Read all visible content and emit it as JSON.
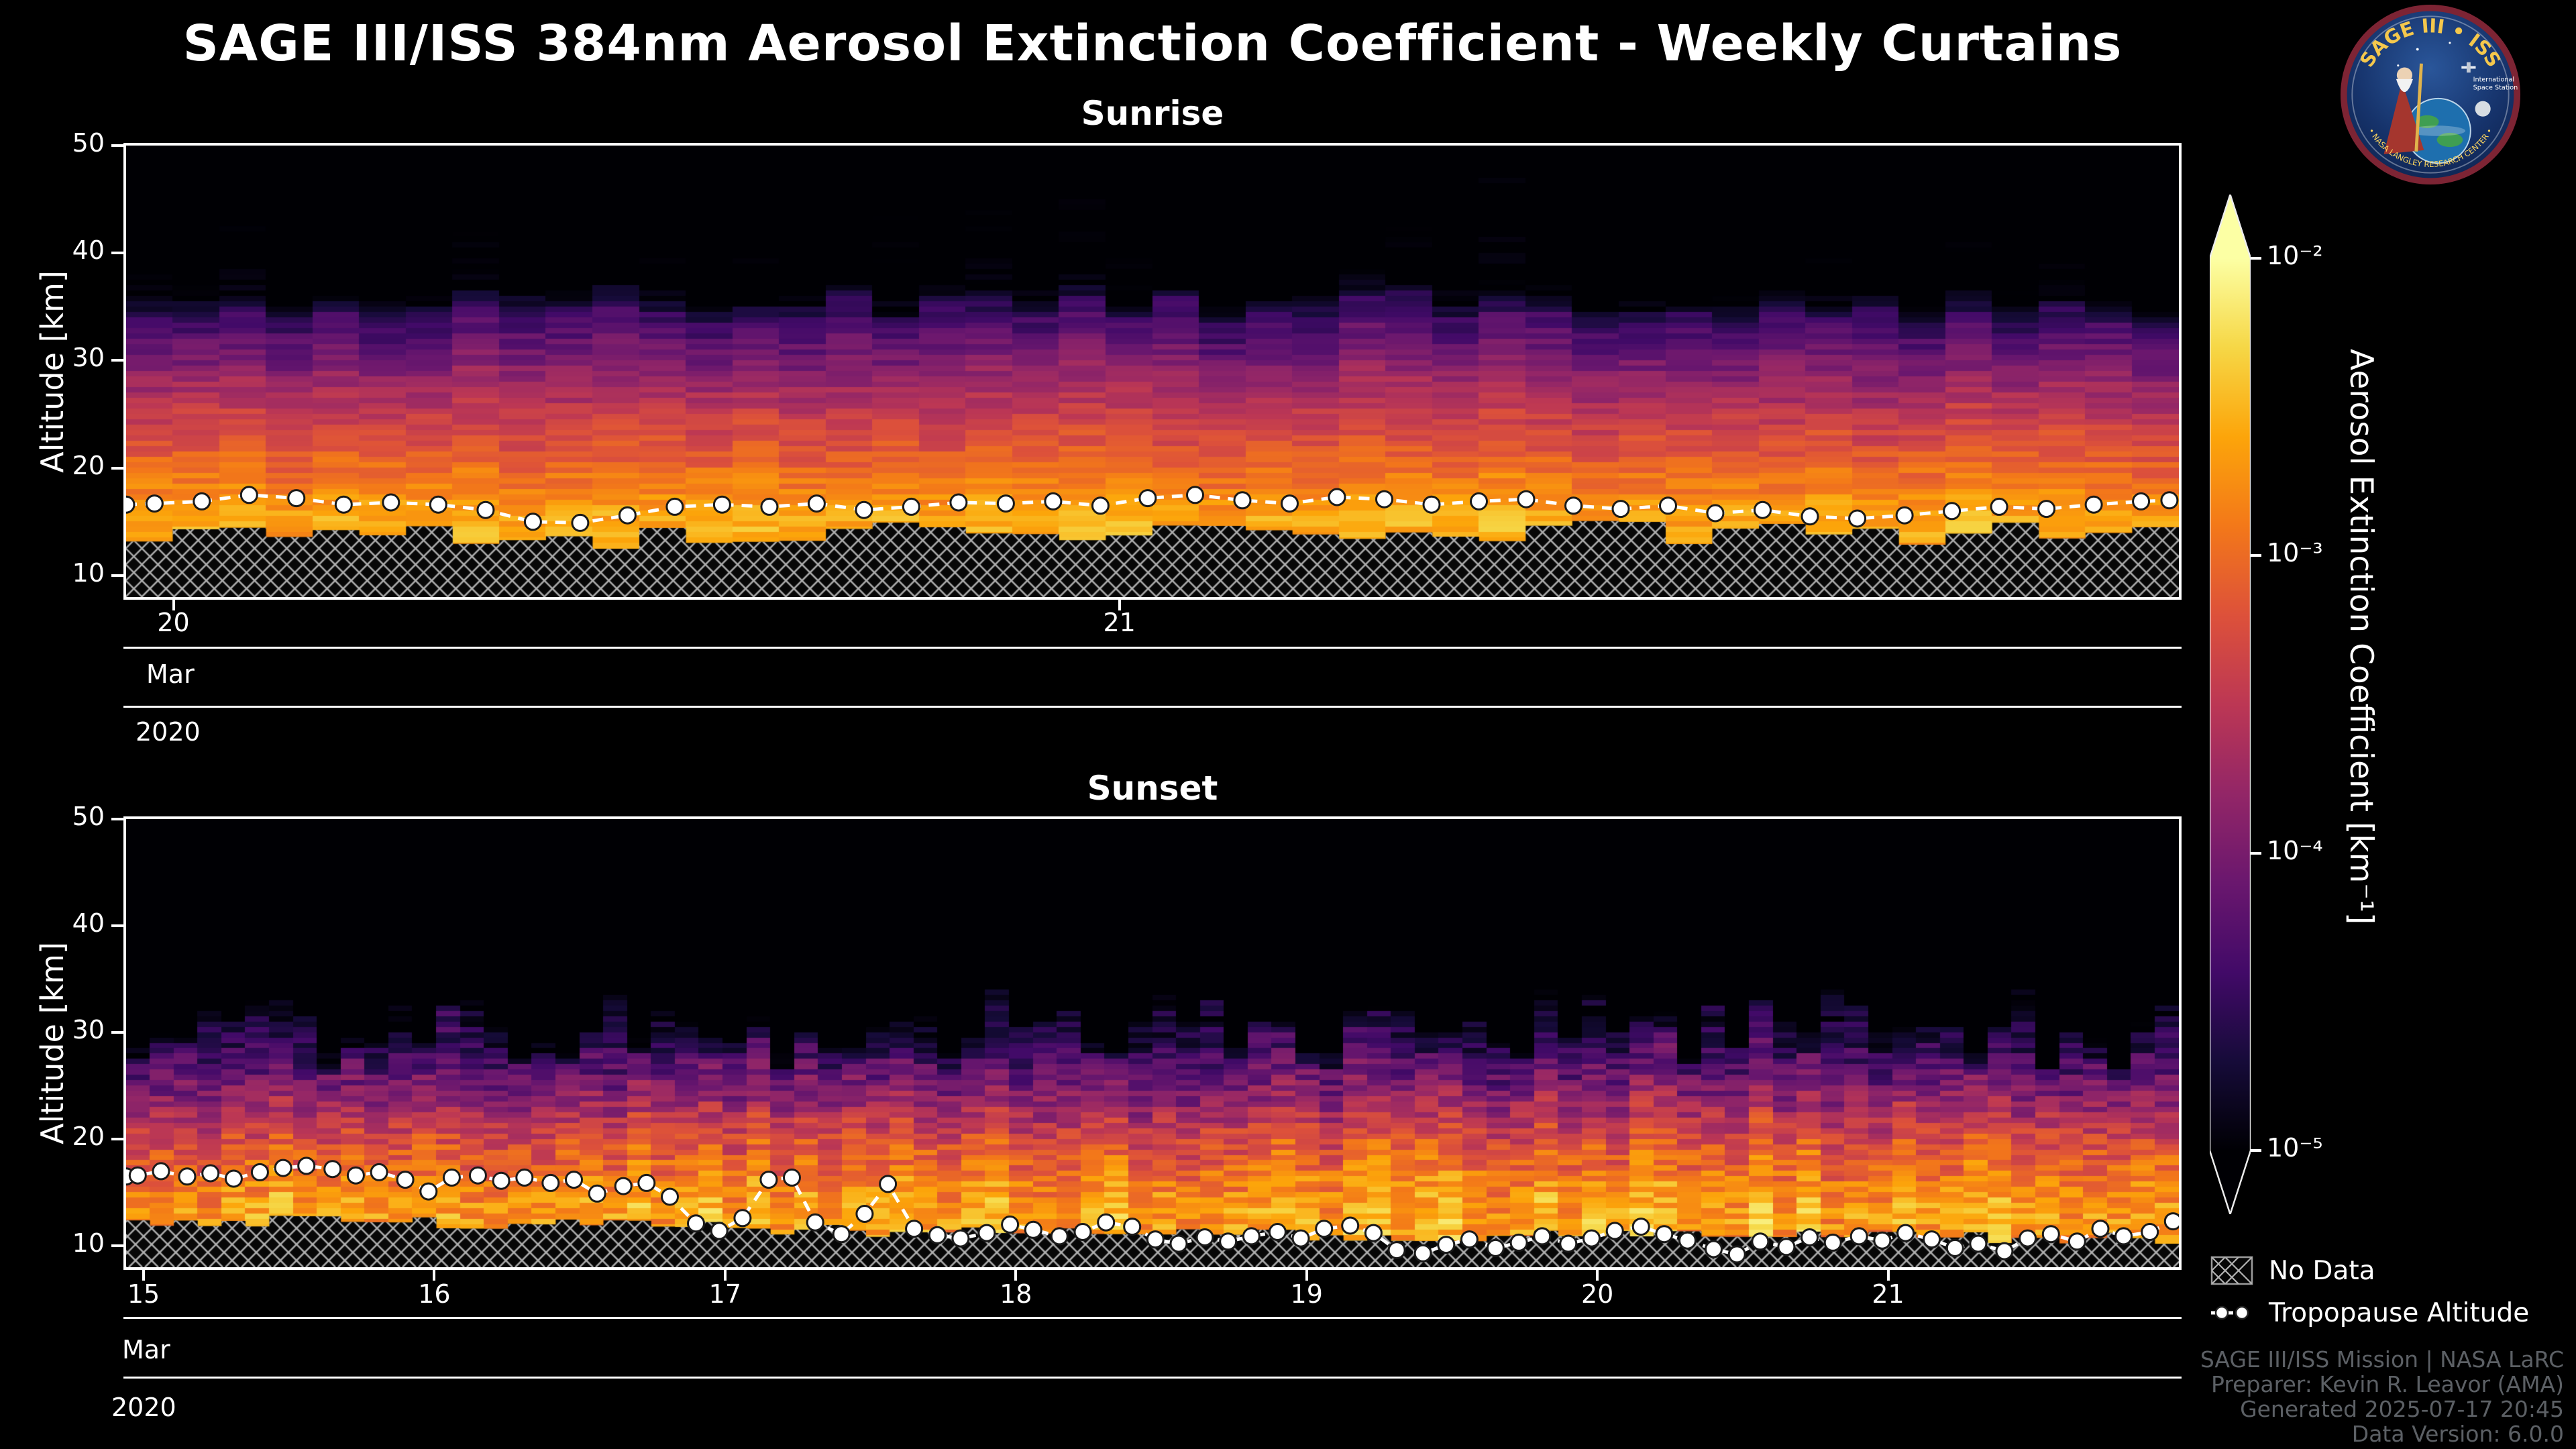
{
  "title": "SAGE III/ISS 384nm Aerosol Extinction Coefficient - Weekly Curtains",
  "logo": {
    "title": "SAGE III • ISS",
    "sub1": "International",
    "sub2": "Space Station",
    "arc_text": "• NASA LANGLEY RESEARCH CENTER •"
  },
  "colorbar": {
    "label": "Aerosol Extinction Coefficient [km⁻¹]",
    "scale": "log10",
    "range_log10": [
      -5,
      -2
    ],
    "ticks": [
      {
        "value_log10": -2,
        "label": "10⁻²"
      },
      {
        "value_log10": -3,
        "label": "10⁻³"
      },
      {
        "value_log10": -4,
        "label": "10⁻⁴"
      },
      {
        "value_log10": -5,
        "label": "10⁻⁵"
      }
    ],
    "stops": [
      {
        "t": 0.0,
        "c": "#000004"
      },
      {
        "t": 0.1,
        "c": "#160b39"
      },
      {
        "t": 0.2,
        "c": "#420a68"
      },
      {
        "t": 0.3,
        "c": "#6a176e"
      },
      {
        "t": 0.4,
        "c": "#932667"
      },
      {
        "t": 0.5,
        "c": "#bc3754"
      },
      {
        "t": 0.6,
        "c": "#dd513a"
      },
      {
        "t": 0.7,
        "c": "#f37819"
      },
      {
        "t": 0.8,
        "c": "#fca50a"
      },
      {
        "t": 0.9,
        "c": "#f6d746"
      },
      {
        "t": 1.0,
        "c": "#fcffa4"
      }
    ]
  },
  "legend": {
    "no_data": "No Data",
    "tropopause": "Tropopause Altitude"
  },
  "footer": {
    "lines": [
      "SAGE III/ISS Mission | NASA LaRC",
      "Preparer: Kevin R. Leavor (AMA)",
      "Generated 2025-07-17 20:45",
      "Data Version: 6.0.0"
    ]
  },
  "chart_data": [
    {
      "type": "heatmap",
      "name": "sunrise",
      "title": "Sunrise",
      "ylabel": "Altitude [km]",
      "y_range": [
        8,
        50
      ],
      "y_ticks": [
        10,
        20,
        30,
        40,
        50
      ],
      "x_range": [
        19.95,
        22.12
      ],
      "x_ticks": [
        {
          "v": 20,
          "label": "20"
        },
        {
          "v": 21,
          "label": "21"
        }
      ],
      "date_axis": {
        "month": "Mar",
        "year": "2020"
      },
      "value_label": "Aerosol Extinction Coefficient [km⁻¹]",
      "value_scale": "log10",
      "profile_alt_log10k": [
        [
          8,
          -2.8
        ],
        [
          12,
          -2.7
        ],
        [
          14,
          -2.55
        ],
        [
          16,
          -2.6
        ],
        [
          18,
          -2.85
        ],
        [
          20,
          -3.0
        ],
        [
          22,
          -3.2
        ],
        [
          24,
          -3.35
        ],
        [
          26,
          -3.55
        ],
        [
          28,
          -3.75
        ],
        [
          30,
          -4.0
        ],
        [
          32,
          -4.2
        ],
        [
          34,
          -4.45
        ],
        [
          35,
          -4.7
        ],
        [
          36,
          -5.05
        ],
        [
          38,
          -5.15
        ],
        [
          42,
          -5.2
        ],
        [
          50,
          -5.25
        ]
      ],
      "tropopause_km": [
        [
          19.95,
          16.6
        ],
        [
          19.98,
          16.7
        ],
        [
          20.03,
          16.9
        ],
        [
          20.08,
          17.5
        ],
        [
          20.13,
          17.2
        ],
        [
          20.18,
          16.6
        ],
        [
          20.23,
          16.8
        ],
        [
          20.28,
          16.6
        ],
        [
          20.33,
          16.1
        ],
        [
          20.38,
          15.0
        ],
        [
          20.43,
          14.9
        ],
        [
          20.48,
          15.6
        ],
        [
          20.53,
          16.4
        ],
        [
          20.58,
          16.6
        ],
        [
          20.63,
          16.4
        ],
        [
          20.68,
          16.7
        ],
        [
          20.73,
          16.1
        ],
        [
          20.78,
          16.4
        ],
        [
          20.83,
          16.8
        ],
        [
          20.88,
          16.7
        ],
        [
          20.93,
          16.9
        ],
        [
          20.98,
          16.5
        ],
        [
          21.03,
          17.2
        ],
        [
          21.08,
          17.5
        ],
        [
          21.13,
          17.0
        ],
        [
          21.18,
          16.7
        ],
        [
          21.23,
          17.3
        ],
        [
          21.28,
          17.1
        ],
        [
          21.33,
          16.6
        ],
        [
          21.38,
          16.9
        ],
        [
          21.43,
          17.1
        ],
        [
          21.48,
          16.5
        ],
        [
          21.53,
          16.2
        ],
        [
          21.58,
          16.5
        ],
        [
          21.63,
          15.8
        ],
        [
          21.68,
          16.1
        ],
        [
          21.73,
          15.5
        ],
        [
          21.78,
          15.3
        ],
        [
          21.83,
          15.6
        ],
        [
          21.88,
          16.0
        ],
        [
          21.93,
          16.4
        ],
        [
          21.98,
          16.2
        ],
        [
          22.03,
          16.6
        ],
        [
          22.08,
          16.9
        ],
        [
          22.11,
          17.0
        ]
      ],
      "no_data_top_km": [
        [
          19.95,
          13.6
        ],
        [
          20.2,
          14.3
        ],
        [
          20.5,
          13.4
        ],
        [
          20.8,
          14.0
        ],
        [
          21.1,
          13.6
        ],
        [
          21.4,
          14.2
        ],
        [
          21.7,
          13.8
        ],
        [
          22.12,
          14.0
        ]
      ],
      "render": {
        "cols": 44,
        "row_km": 0.5,
        "seed": 11,
        "cell_noise": 0.18,
        "col_noise": 0.1,
        "top_shift": 1.4,
        "hatch_jitter": 1.0
      }
    },
    {
      "type": "heatmap",
      "name": "sunset",
      "title": "Sunset",
      "ylabel": "Altitude [km]",
      "y_range": [
        8,
        50
      ],
      "y_ticks": [
        10,
        20,
        30,
        40,
        50
      ],
      "x_range": [
        14.94,
        22.0
      ],
      "x_ticks": [
        {
          "v": 15,
          "label": "15"
        },
        {
          "v": 16,
          "label": "16"
        },
        {
          "v": 17,
          "label": "17"
        },
        {
          "v": 18,
          "label": "18"
        },
        {
          "v": 19,
          "label": "19"
        },
        {
          "v": 20,
          "label": "20"
        },
        {
          "v": 21,
          "label": "21"
        }
      ],
      "date_axis": {
        "month": "Mar",
        "year": "2020"
      },
      "value_label": "Aerosol Extinction Coefficient [km⁻¹]",
      "value_scale": "log10",
      "profile_alt_log10k": [
        [
          8,
          -2.75
        ],
        [
          11,
          -2.65
        ],
        [
          13,
          -2.6
        ],
        [
          15,
          -2.75
        ],
        [
          17,
          -2.95
        ],
        [
          19,
          -3.15
        ],
        [
          21,
          -3.4
        ],
        [
          23,
          -3.7
        ],
        [
          25,
          -4.0
        ],
        [
          27,
          -4.25
        ],
        [
          29,
          -4.5
        ],
        [
          31,
          -4.7
        ],
        [
          33,
          -4.9
        ],
        [
          35,
          -5.1
        ],
        [
          38,
          -5.2
        ],
        [
          50,
          -5.3
        ]
      ],
      "tropopause_km": [
        [
          14.94,
          16.5
        ],
        [
          14.98,
          16.6
        ],
        [
          15.06,
          17.0
        ],
        [
          15.15,
          16.5
        ],
        [
          15.23,
          16.8
        ],
        [
          15.31,
          16.3
        ],
        [
          15.4,
          16.9
        ],
        [
          15.48,
          17.3
        ],
        [
          15.56,
          17.5
        ],
        [
          15.65,
          17.2
        ],
        [
          15.73,
          16.6
        ],
        [
          15.81,
          16.9
        ],
        [
          15.9,
          16.2
        ],
        [
          15.98,
          15.1
        ],
        [
          16.06,
          16.4
        ],
        [
          16.15,
          16.6
        ],
        [
          16.23,
          16.1
        ],
        [
          16.31,
          16.4
        ],
        [
          16.4,
          15.9
        ],
        [
          16.48,
          16.2
        ],
        [
          16.56,
          14.9
        ],
        [
          16.65,
          15.6
        ],
        [
          16.73,
          15.9
        ],
        [
          16.81,
          14.6
        ],
        [
          16.9,
          12.1
        ],
        [
          16.98,
          11.4
        ],
        [
          17.06,
          12.6
        ],
        [
          17.15,
          16.2
        ],
        [
          17.23,
          16.4
        ],
        [
          17.31,
          12.2
        ],
        [
          17.4,
          11.1
        ],
        [
          17.48,
          13.0
        ],
        [
          17.56,
          15.8
        ],
        [
          17.65,
          11.6
        ],
        [
          17.73,
          11.0
        ],
        [
          17.81,
          10.7
        ],
        [
          17.9,
          11.2
        ],
        [
          17.98,
          12.0
        ],
        [
          18.06,
          11.5
        ],
        [
          18.15,
          10.9
        ],
        [
          18.23,
          11.3
        ],
        [
          18.31,
          12.2
        ],
        [
          18.4,
          11.8
        ],
        [
          18.48,
          10.6
        ],
        [
          18.56,
          10.2
        ],
        [
          18.65,
          10.8
        ],
        [
          18.73,
          10.4
        ],
        [
          18.81,
          10.9
        ],
        [
          18.9,
          11.3
        ],
        [
          18.98,
          10.7
        ],
        [
          19.06,
          11.6
        ],
        [
          19.15,
          11.9
        ],
        [
          19.23,
          11.2
        ],
        [
          19.31,
          9.6
        ],
        [
          19.4,
          9.3
        ],
        [
          19.48,
          10.1
        ],
        [
          19.56,
          10.6
        ],
        [
          19.65,
          9.8
        ],
        [
          19.73,
          10.3
        ],
        [
          19.81,
          10.9
        ],
        [
          19.9,
          10.2
        ],
        [
          19.98,
          10.7
        ],
        [
          20.06,
          11.4
        ],
        [
          20.15,
          11.8
        ],
        [
          20.23,
          11.1
        ],
        [
          20.31,
          10.5
        ],
        [
          20.4,
          9.7
        ],
        [
          20.48,
          9.2
        ],
        [
          20.56,
          10.4
        ],
        [
          20.65,
          9.9
        ],
        [
          20.73,
          10.8
        ],
        [
          20.81,
          10.3
        ],
        [
          20.9,
          10.9
        ],
        [
          20.98,
          10.5
        ],
        [
          21.06,
          11.2
        ],
        [
          21.15,
          10.6
        ],
        [
          21.23,
          9.8
        ],
        [
          21.31,
          10.2
        ],
        [
          21.4,
          9.5
        ],
        [
          21.48,
          10.7
        ],
        [
          21.56,
          11.1
        ],
        [
          21.65,
          10.4
        ],
        [
          21.73,
          11.6
        ],
        [
          21.81,
          10.9
        ],
        [
          21.9,
          11.3
        ],
        [
          21.98,
          12.3
        ]
      ],
      "no_data_top_km": [
        [
          14.94,
          12.4
        ],
        [
          15.5,
          12.3
        ],
        [
          16.2,
          12.1
        ],
        [
          17.0,
          11.7
        ],
        [
          17.6,
          11.3
        ],
        [
          18.3,
          11.1
        ],
        [
          19.0,
          11.0
        ],
        [
          20.0,
          10.9
        ],
        [
          21.0,
          10.8
        ],
        [
          22.0,
          10.7
        ]
      ],
      "render": {
        "cols": 86,
        "row_km": 0.5,
        "seed": 29,
        "cell_noise": 0.32,
        "col_noise": 0.18,
        "top_shift": 2.4,
        "hatch_jitter": 0.5,
        "plume": [
          25,
          34
        ]
      }
    }
  ]
}
